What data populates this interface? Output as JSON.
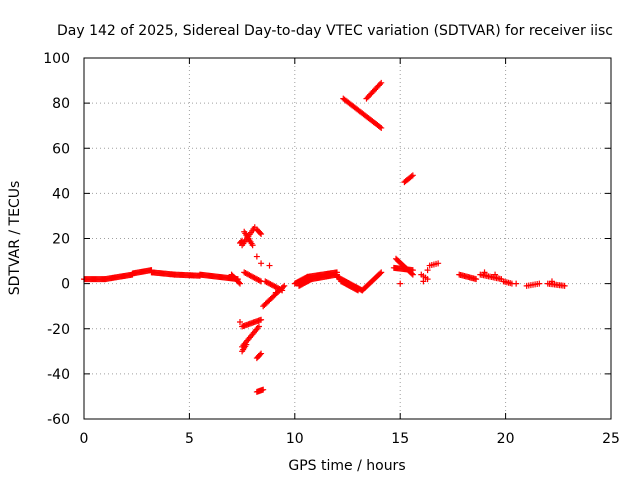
{
  "chart_data": {
    "type": "scatter",
    "title": "Day 142 of 2025, Sidereal Day-to-day VTEC variation (SDTVAR) for receiver iisc",
    "xlabel": "GPS time / hours",
    "ylabel": "SDTVAR / TECUs",
    "xlim": [
      0,
      25
    ],
    "ylim": [
      -60,
      100
    ],
    "x_ticks": [
      "0",
      "5",
      "10",
      "15",
      "20",
      "25"
    ],
    "y_ticks": [
      "-60",
      "-40",
      "-20",
      "0",
      "20",
      "40",
      "60",
      "80",
      "100"
    ],
    "grid": true,
    "marker": "+",
    "color": "#ff0000",
    "segments": [
      {
        "x0": 0.0,
        "x1": 1.0,
        "y0": 2,
        "y1": 2,
        "step": 0.05
      },
      {
        "x0": 1.0,
        "x1": 2.3,
        "y0": 2,
        "y1": 4,
        "step": 0.05
      },
      {
        "x0": 2.3,
        "x1": 3.2,
        "y0": 4.5,
        "y1": 6,
        "step": 0.05
      },
      {
        "x0": 3.2,
        "x1": 4.3,
        "y0": 5,
        "y1": 4,
        "step": 0.05
      },
      {
        "x0": 4.3,
        "x1": 5.5,
        "y0": 4,
        "y1": 3.5,
        "step": 0.05
      },
      {
        "x0": 5.5,
        "x1": 7.3,
        "y0": 4,
        "y1": 2,
        "step": 0.05
      },
      {
        "x0": 7.0,
        "x1": 7.4,
        "y0": 4,
        "y1": 0,
        "step": 0.05
      },
      {
        "x0": 7.6,
        "x1": 8.4,
        "y0": 5,
        "y1": 1,
        "step": 0.06
      },
      {
        "x0": 7.5,
        "x1": 8.1,
        "y0": 17,
        "y1": 25,
        "step": 0.06
      },
      {
        "x0": 7.6,
        "x1": 8.0,
        "y0": 23,
        "y1": 17,
        "step": 0.05
      },
      {
        "x0": 8.2,
        "x1": 8.4,
        "y0": 24,
        "y1": 22,
        "step": 0.05
      },
      {
        "x0": 7.4,
        "x1": 7.5,
        "y0": 18,
        "y1": 19,
        "step": 0.05
      },
      {
        "x0": 7.5,
        "x1": 8.4,
        "y0": -19,
        "y1": -16,
        "step": 0.06
      },
      {
        "x0": 7.5,
        "x1": 8.3,
        "y0": -28,
        "y1": -19,
        "step": 0.06
      },
      {
        "x0": 7.5,
        "x1": 7.7,
        "y0": -30,
        "y1": -27,
        "step": 0.05
      },
      {
        "x0": 8.2,
        "x1": 8.4,
        "y0": -33,
        "y1": -31,
        "step": 0.05
      },
      {
        "x0": 8.2,
        "x1": 8.5,
        "y0": -48,
        "y1": -47,
        "step": 0.05
      },
      {
        "x0": 8.5,
        "x1": 9.5,
        "y0": -10,
        "y1": -1,
        "step": 0.06
      },
      {
        "x0": 8.6,
        "x1": 9.4,
        "y0": 1,
        "y1": -3,
        "step": 0.06
      },
      {
        "x0": 10.0,
        "x1": 10.6,
        "y0": 0,
        "y1": 3,
        "step": 0.05
      },
      {
        "x0": 10.2,
        "x1": 10.8,
        "y0": -1,
        "y1": 2,
        "step": 0.05
      },
      {
        "x0": 10.6,
        "x1": 12.0,
        "y0": 3,
        "y1": 5,
        "step": 0.05
      },
      {
        "x0": 10.8,
        "x1": 12.0,
        "y0": 2,
        "y1": 4,
        "step": 0.05
      },
      {
        "x0": 12.0,
        "x1": 13.2,
        "y0": 3,
        "y1": -3,
        "step": 0.05
      },
      {
        "x0": 12.2,
        "x1": 13.0,
        "y0": 1,
        "y1": -3,
        "step": 0.05
      },
      {
        "x0": 13.2,
        "x1": 14.1,
        "y0": -3,
        "y1": 5,
        "step": 0.05
      },
      {
        "x0": 12.3,
        "x1": 14.1,
        "y0": 82,
        "y1": 69,
        "step": 0.06
      },
      {
        "x0": 13.4,
        "x1": 14.1,
        "y0": 82,
        "y1": 89,
        "step": 0.06
      },
      {
        "x0": 14.7,
        "x1": 15.6,
        "y0": 7,
        "y1": 6,
        "step": 0.05
      },
      {
        "x0": 14.8,
        "x1": 15.6,
        "y0": 11,
        "y1": 4,
        "step": 0.05
      },
      {
        "x0": 15.2,
        "x1": 15.6,
        "y0": 45,
        "y1": 48,
        "step": 0.06
      },
      {
        "x0": 16.0,
        "x1": 16.3,
        "y0": 4,
        "y1": 2,
        "step": 0.1
      },
      {
        "x0": 16.4,
        "x1": 16.8,
        "y0": 8,
        "y1": 9,
        "step": 0.1
      },
      {
        "x0": 17.8,
        "x1": 18.6,
        "y0": 4,
        "y1": 2,
        "step": 0.06
      },
      {
        "x0": 18.8,
        "x1": 19.8,
        "y0": 4,
        "y1": 2,
        "step": 0.08
      },
      {
        "x0": 19.9,
        "x1": 20.3,
        "y0": 1,
        "y1": 0,
        "step": 0.08
      },
      {
        "x0": 21.0,
        "x1": 21.6,
        "y0": -1,
        "y1": 0,
        "step": 0.1
      },
      {
        "x0": 22.0,
        "x1": 22.8,
        "y0": 0,
        "y1": -1,
        "step": 0.08
      }
    ],
    "points": [
      {
        "x": 8.4,
        "y": 9
      },
      {
        "x": 8.8,
        "y": 8
      },
      {
        "x": 8.2,
        "y": 12
      },
      {
        "x": 16.1,
        "y": 1
      },
      {
        "x": 16.3,
        "y": 6
      },
      {
        "x": 19.0,
        "y": 5
      },
      {
        "x": 19.5,
        "y": 4
      },
      {
        "x": 20.5,
        "y": 0
      },
      {
        "x": 22.2,
        "y": 1
      },
      {
        "x": 15.0,
        "y": 0
      },
      {
        "x": 9.1,
        "y": -4
      },
      {
        "x": 7.4,
        "y": -17
      }
    ]
  }
}
